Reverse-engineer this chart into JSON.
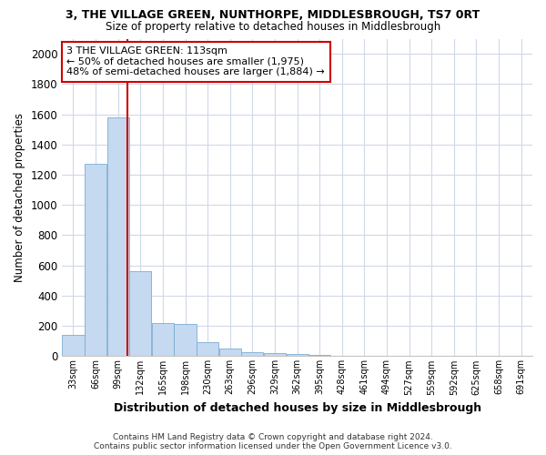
{
  "title": "3, THE VILLAGE GREEN, NUNTHORPE, MIDDLESBROUGH, TS7 0RT",
  "subtitle": "Size of property relative to detached houses in Middlesbrough",
  "xlabel": "Distribution of detached houses by size in Middlesbrough",
  "ylabel": "Number of detached properties",
  "footer_line1": "Contains HM Land Registry data © Crown copyright and database right 2024.",
  "footer_line2": "Contains public sector information licensed under the Open Government Licence v3.0.",
  "bar_color": "#c5d9f0",
  "bar_edge_color": "#7aadd4",
  "annotation_box_color": "#cc0000",
  "vline_color": "#cc0000",
  "annotation_line1": "3 THE VILLAGE GREEN: 113sqm",
  "annotation_line2": "← 50% of detached houses are smaller (1,975)",
  "annotation_line3": "48% of semi-detached houses are larger (1,884) →",
  "property_size": 113,
  "categories": [
    "33sqm",
    "66sqm",
    "99sqm",
    "132sqm",
    "165sqm",
    "198sqm",
    "230sqm",
    "263sqm",
    "296sqm",
    "329sqm",
    "362sqm",
    "395sqm",
    "428sqm",
    "461sqm",
    "494sqm",
    "527sqm",
    "559sqm",
    "592sqm",
    "625sqm",
    "658sqm",
    "691sqm"
  ],
  "bin_edges": [
    16.5,
    49.5,
    82.5,
    115.5,
    148.5,
    181.5,
    214.5,
    247.5,
    280.5,
    313.5,
    346.5,
    379.5,
    412.5,
    445.5,
    478.5,
    511.5,
    544.5,
    577.5,
    610.5,
    643.5,
    676.5,
    709.5
  ],
  "values": [
    140,
    1270,
    1580,
    560,
    220,
    215,
    95,
    50,
    28,
    18,
    15,
    10,
    2,
    1,
    0,
    0,
    0,
    0,
    0,
    0,
    0
  ],
  "ylim": [
    0,
    2100
  ],
  "yticks": [
    0,
    200,
    400,
    600,
    800,
    1000,
    1200,
    1400,
    1600,
    1800,
    2000
  ],
  "bg_color": "#ffffff",
  "grid_color": "#d0d8e8"
}
